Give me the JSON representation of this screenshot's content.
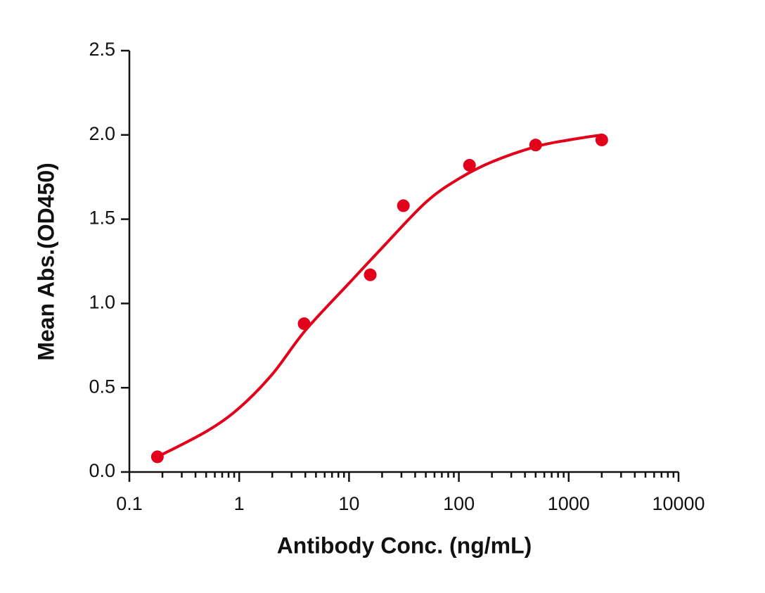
{
  "chart_data": {
    "type": "scatter",
    "x_label": "Antibody Conc. (ng/mL)",
    "y_label": "Mean Abs.(OD450)",
    "x_scale": "log",
    "color": "#e2001a",
    "x": [
      0.18,
      3.9,
      15.6,
      31.25,
      125,
      500,
      2000
    ],
    "values": [
      0.09,
      0.88,
      1.17,
      1.58,
      1.82,
      1.94,
      1.97
    ],
    "fit": {
      "x": [
        0.18,
        0.5,
        1,
        2,
        4,
        10,
        20,
        50,
        100,
        200,
        500,
        1000,
        2000
      ],
      "values": [
        0.09,
        0.24,
        0.38,
        0.58,
        0.84,
        1.12,
        1.33,
        1.6,
        1.74,
        1.84,
        1.93,
        1.97,
        2.0
      ]
    },
    "xlim": [
      0.1,
      10000
    ],
    "xticks": [
      0.1,
      1,
      10,
      100,
      1000,
      10000
    ],
    "xminorticks": [
      0.2,
      0.3,
      0.4,
      0.5,
      0.6,
      0.7,
      0.8,
      0.9,
      2,
      3,
      4,
      5,
      6,
      7,
      8,
      9,
      20,
      30,
      40,
      50,
      60,
      70,
      80,
      90,
      200,
      300,
      400,
      500,
      600,
      700,
      800,
      900,
      2000,
      3000,
      4000,
      5000,
      6000,
      7000,
      8000,
      9000
    ],
    "ylim": [
      0,
      2.5
    ],
    "yticks": [
      {
        "value": 0,
        "label": "0.0"
      },
      {
        "value": 0.5,
        "label": "0.5"
      },
      {
        "value": 1,
        "label": "1.0"
      },
      {
        "value": 1.5,
        "label": "1.5"
      },
      {
        "value": 2,
        "label": "2.0"
      },
      {
        "value": 2.5,
        "label": "2.5"
      }
    ]
  }
}
